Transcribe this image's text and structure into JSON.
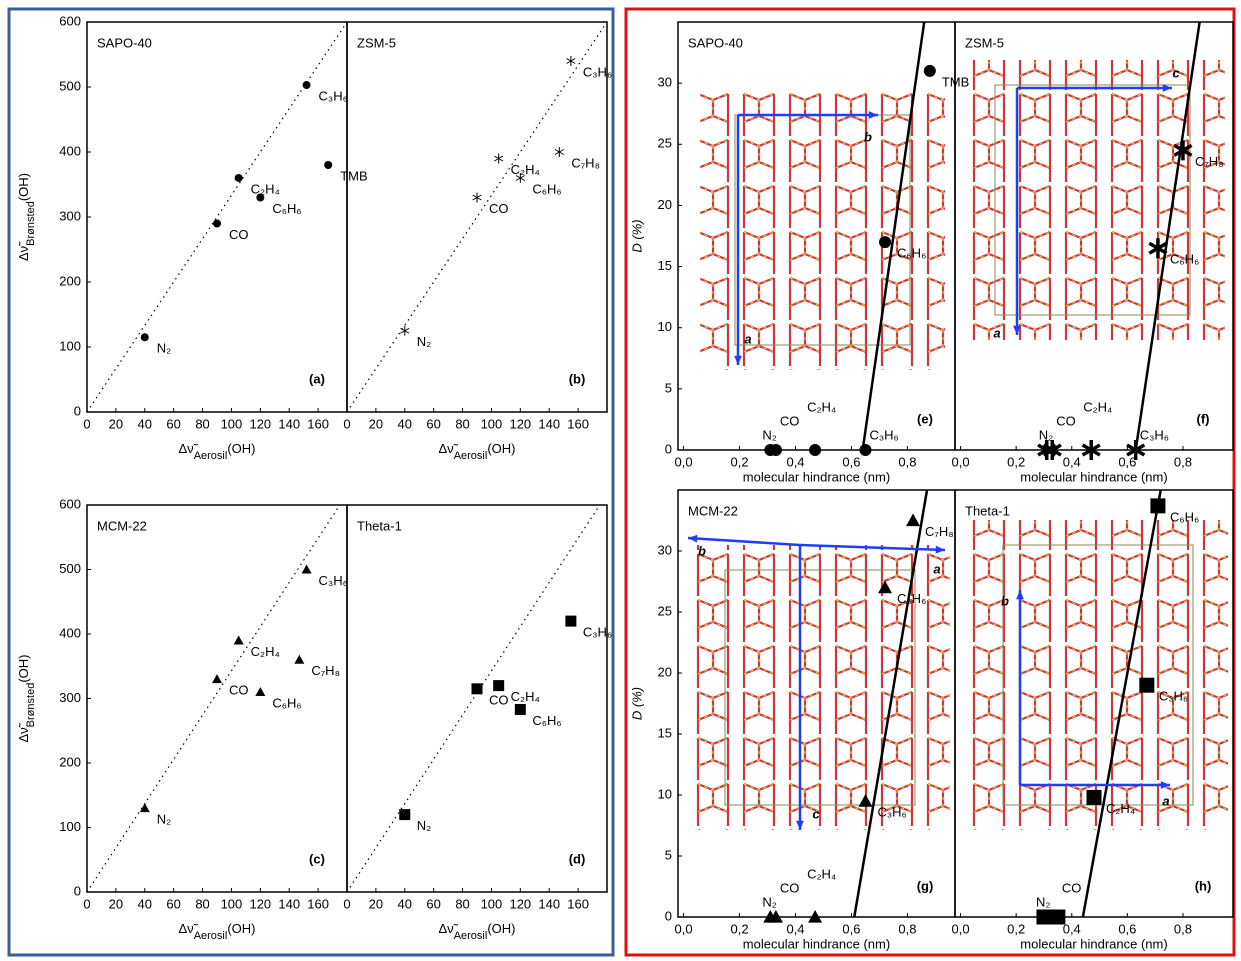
{
  "chart_data": [
    {
      "type": "scatter",
      "title": "SAPO-40",
      "panel_label": "(a)",
      "label_color": "#2563c8",
      "marker": "circle",
      "color": "#000000",
      "x": [
        40,
        90,
        105,
        120,
        152,
        167
      ],
      "values": [
        115,
        290,
        360,
        330,
        503,
        380
      ],
      "point_labels": [
        "N₂",
        "CO",
        "C₂H₄",
        "C₆H₆",
        "C₃H₆",
        "TMB"
      ],
      "xlim": [
        0,
        180
      ],
      "ylim": [
        0,
        600
      ],
      "xticks": [
        0,
        20,
        40,
        60,
        80,
        100,
        120,
        140,
        160
      ],
      "yticks": [
        0,
        100,
        200,
        300,
        400,
        500,
        600
      ],
      "x_label": [
        "Δν̃",
        "Aerosil",
        "(OH)"
      ],
      "y_label": [
        "Δν̃",
        "Brønsted",
        "(OH)"
      ],
      "ref_line": {
        "x": [
          0,
          180
        ],
        "y": [
          0,
          600
        ]
      }
    },
    {
      "type": "scatter",
      "title": "ZSM-5",
      "panel_label": "(b)",
      "label_color": "#2563c8",
      "marker": "star",
      "color": "#000000",
      "x": [
        40,
        90,
        105,
        120,
        155,
        147
      ],
      "values": [
        125,
        330,
        390,
        360,
        540,
        400
      ],
      "point_labels": [
        "N₂",
        "CO",
        "C₂H₄",
        "C₆H₆",
        "C₃H₆",
        "C₇H₈"
      ],
      "xlim": [
        0,
        180
      ],
      "ylim": [
        0,
        600
      ],
      "xticks": [
        0,
        20,
        40,
        60,
        80,
        100,
        120,
        140,
        160
      ],
      "x_label": [
        "Δν̃",
        "Aerosil",
        "(OH)"
      ],
      "ref_line": {
        "x": [
          0,
          180
        ],
        "y": [
          0,
          600
        ]
      }
    },
    {
      "type": "scatter",
      "title": "MCM-22",
      "panel_label": "(c)",
      "label_color": "#2563c8",
      "marker": "triangle",
      "color": "#000000",
      "x": [
        40,
        90,
        105,
        120,
        152,
        147
      ],
      "values": [
        130,
        330,
        390,
        310,
        500,
        360
      ],
      "point_labels": [
        "N₂",
        "CO",
        "C₂H₄",
        "C₆H₆",
        "C₃H₆",
        "C₇H₈"
      ],
      "xlim": [
        0,
        180
      ],
      "ylim": [
        0,
        600
      ],
      "xticks": [
        0,
        20,
        40,
        60,
        80,
        100,
        120,
        140,
        160
      ],
      "yticks": [
        0,
        100,
        200,
        300,
        400,
        500,
        600
      ],
      "x_label": [
        "Δν̃",
        "Aerosil",
        "(OH)"
      ],
      "y_label": [
        "Δν̃",
        "Brønsted",
        "(OH)"
      ],
      "ref_line": {
        "x": [
          0,
          175
        ],
        "y": [
          0,
          600
        ]
      }
    },
    {
      "type": "scatter",
      "title": "Theta-1",
      "panel_label": "(d)",
      "label_color": "#2563c8",
      "marker": "square",
      "color": "#000000",
      "x": [
        40,
        90,
        105,
        120,
        155
      ],
      "values": [
        120,
        315,
        320,
        283,
        420
      ],
      "point_labels": [
        "N₂",
        "CO",
        "C₂H₄",
        "C₆H₆",
        "C₃H₆"
      ],
      "xlim": [
        0,
        180
      ],
      "ylim": [
        0,
        600
      ],
      "xticks": [
        0,
        20,
        40,
        60,
        80,
        100,
        120,
        140,
        160
      ],
      "x_label": [
        "Δν̃",
        "Aerosil",
        "(OH)"
      ],
      "ref_line": {
        "x": [
          0,
          175
        ],
        "y": [
          0,
          600
        ]
      }
    },
    {
      "type": "scatter",
      "title": "SAPO-40",
      "panel_label": "(e)",
      "label_color": "#e02020",
      "marker": "circle",
      "color": "#000000",
      "x": [
        0.31,
        0.33,
        0.47,
        0.65,
        0.72,
        0.88
      ],
      "values": [
        0,
        0,
        0,
        0,
        17,
        31
      ],
      "point_labels": [
        "N₂",
        "CO",
        "C₂H₄",
        "C₃H₆",
        "C₆H₆",
        "TMB"
      ],
      "xlim": [
        -0.02,
        0.97
      ],
      "ylim": [
        0,
        35
      ],
      "xticks": [
        {
          "value": 0,
          "label": "0,0"
        },
        {
          "value": 0.2,
          "label": "0,2"
        },
        {
          "value": 0.4,
          "label": "0,4"
        },
        {
          "value": 0.6,
          "label": "0,6"
        },
        {
          "value": 0.8,
          "label": "0,8"
        }
      ],
      "yticks": [
        0,
        5,
        10,
        15,
        20,
        25,
        30
      ],
      "x_label": "molecular hindrance (nm)",
      "y_label": "D (%)",
      "cell_axes": [
        "b",
        "a"
      ],
      "fit_line": {
        "x": [
          0.64,
          0.86
        ],
        "y": [
          0,
          35
        ]
      }
    },
    {
      "type": "scatter",
      "title": "ZSM-5",
      "panel_label": "(f)",
      "label_color": "#e02020",
      "marker": "star",
      "color": "#000000",
      "x": [
        0.31,
        0.33,
        0.47,
        0.63,
        0.71,
        0.8
      ],
      "values": [
        0,
        0,
        0,
        0,
        16.5,
        24.5
      ],
      "point_labels": [
        "N₂",
        "CO",
        "C₂H₄",
        "C₃H₆",
        "C₆H₆",
        "C₇H₈"
      ],
      "xlim": [
        -0.02,
        0.98
      ],
      "ylim": [
        0,
        35
      ],
      "xticks": [
        {
          "value": 0,
          "label": "0,0"
        },
        {
          "value": 0.2,
          "label": "0,2"
        },
        {
          "value": 0.4,
          "label": "0,4"
        },
        {
          "value": 0.6,
          "label": "0,6"
        },
        {
          "value": 0.8,
          "label": "0,8"
        }
      ],
      "x_label": "molecular hindrance (nm)",
      "cell_axes": [
        "c",
        "a"
      ],
      "fit_line": {
        "x": [
          0.63,
          0.86
        ],
        "y": [
          0,
          35
        ]
      }
    },
    {
      "type": "scatter",
      "title": "MCM-22",
      "panel_label": "(g)",
      "label_color": "#e02020",
      "marker": "triangle",
      "color": "#000000",
      "x": [
        0.31,
        0.33,
        0.47,
        0.65,
        0.72,
        0.82
      ],
      "values": [
        0,
        0,
        0,
        9.5,
        27,
        32.5
      ],
      "point_labels": [
        "N₂",
        "CO",
        "C₂H₄",
        "C₃H₆",
        "C₆H₆",
        "C₇H₈"
      ],
      "xlim": [
        -0.02,
        0.97
      ],
      "ylim": [
        0,
        35
      ],
      "xticks": [
        {
          "value": 0,
          "label": "0,0"
        },
        {
          "value": 0.2,
          "label": "0,2"
        },
        {
          "value": 0.4,
          "label": "0,4"
        },
        {
          "value": 0.6,
          "label": "0,6"
        },
        {
          "value": 0.8,
          "label": "0,8"
        }
      ],
      "yticks": [
        0,
        5,
        10,
        15,
        20,
        25,
        30
      ],
      "x_label": "molecular hindrance (nm)",
      "y_label": "D (%)",
      "cell_axes": [
        "b",
        "a",
        "c"
      ],
      "fit_line": {
        "x": [
          0.61,
          0.87
        ],
        "y": [
          0,
          35
        ]
      }
    },
    {
      "type": "scatter",
      "title": "Theta-1",
      "panel_label": "(h)",
      "label_color": "#e02020",
      "marker": "square",
      "color": "#000000",
      "x": [
        0.3,
        0.35,
        0.48,
        0.67,
        0.71
      ],
      "values": [
        0,
        0,
        9.8,
        19,
        33.7
      ],
      "point_labels": [
        "N₂",
        "CO",
        "C₂H₄",
        "C₃H₆",
        "C₆H₆"
      ],
      "xlim": [
        -0.02,
        0.98
      ],
      "ylim": [
        0,
        35
      ],
      "xticks": [
        {
          "value": 0,
          "label": "0,0"
        },
        {
          "value": 0.2,
          "label": "0,2"
        },
        {
          "value": 0.4,
          "label": "0,4"
        },
        {
          "value": 0.6,
          "label": "0,6"
        },
        {
          "value": 0.8,
          "label": "0,8"
        }
      ],
      "x_label": "molecular hindrance (nm)",
      "cell_axes": [
        "b",
        "a"
      ],
      "fit_line": {
        "x": [
          0.44,
          0.72
        ],
        "y": [
          0,
          35
        ]
      }
    }
  ]
}
